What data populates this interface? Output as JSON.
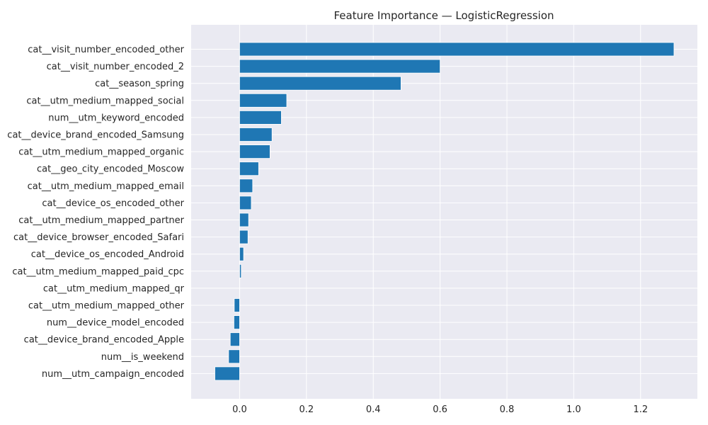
{
  "chart_data": {
    "type": "bar",
    "orientation": "horizontal",
    "title": "Feature Importance — LogisticRegression",
    "xlabel": "",
    "ylabel": "",
    "xlim": [
      -0.145,
      1.37
    ],
    "xticks": [
      0.0,
      0.2,
      0.4,
      0.6,
      0.8,
      1.0,
      1.2
    ],
    "xtick_labels": [
      "0.0",
      "0.2",
      "0.4",
      "0.6",
      "0.8",
      "1.0",
      "1.2"
    ],
    "grid": true,
    "legend": "none",
    "bar_color": "#1f77b4",
    "background_color": "#eaeaf2",
    "grid_color": "#ffffff",
    "categories": [
      "cat__visit_number_encoded_other",
      "cat__visit_number_encoded_2",
      "cat__season_spring",
      "cat__utm_medium_mapped_social",
      "num__utm_keyword_encoded",
      "cat__device_brand_encoded_Samsung",
      "cat__utm_medium_mapped_organic",
      "cat__geo_city_encoded_Moscow",
      "cat__utm_medium_mapped_email",
      "cat__device_os_encoded_other",
      "cat__utm_medium_mapped_partner",
      "cat__device_browser_encoded_Safari",
      "cat__device_os_encoded_Android",
      "cat__utm_medium_mapped_paid_cpc",
      "cat__utm_medium_mapped_qr",
      "cat__utm_medium_mapped_other",
      "num__device_model_encoded",
      "cat__device_brand_encoded_Apple",
      "num__is_weekend",
      "num__utm_campaign_encoded"
    ],
    "values": [
      1.3,
      0.6,
      0.483,
      0.141,
      0.125,
      0.097,
      0.091,
      0.057,
      0.039,
      0.035,
      0.027,
      0.025,
      0.012,
      0.005,
      0.0,
      -0.016,
      -0.017,
      -0.028,
      -0.033,
      -0.074
    ]
  }
}
